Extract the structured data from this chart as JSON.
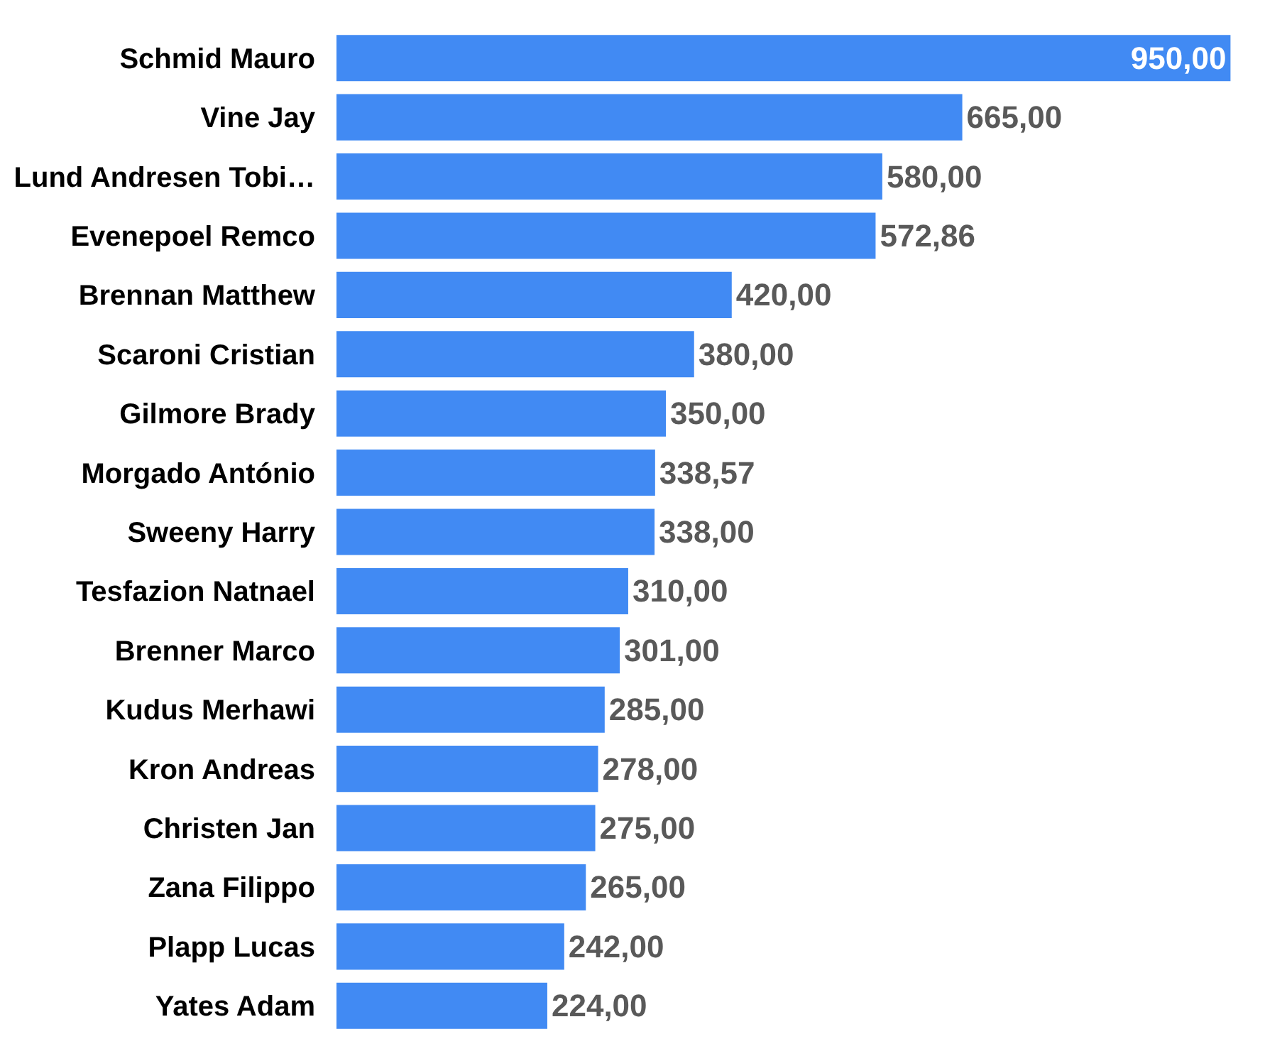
{
  "chart_data": {
    "type": "bar",
    "orientation": "horizontal",
    "color": "#418af3",
    "categories": [
      "Schmid Mauro",
      "Vine Jay",
      "Lund Andresen Tobi…",
      "Evenepoel Remco",
      "Brennan Matthew",
      "Scaroni Cristian",
      "Gilmore Brady",
      "Morgado António",
      "Sweeny Harry",
      "Tesfazion Natnael",
      "Brenner Marco",
      "Kudus Merhawi",
      "Kron Andreas",
      "Christen Jan",
      "Zana Filippo",
      "Plapp Lucas",
      "Yates Adam"
    ],
    "values": [
      950,
      665,
      580,
      572.86,
      420,
      380,
      350,
      338.57,
      338,
      310,
      301,
      285,
      278,
      275,
      265,
      242,
      224
    ],
    "value_labels": [
      "950,00",
      "665,00",
      "580,00",
      "572,86",
      "420,00",
      "380,00",
      "350,00",
      "338,57",
      "338,00",
      "310,00",
      "301,00",
      "285,00",
      "278,00",
      "275,00",
      "265,00",
      "242,00",
      "224,00"
    ],
    "tick_labels": "y",
    "legend": false
  }
}
